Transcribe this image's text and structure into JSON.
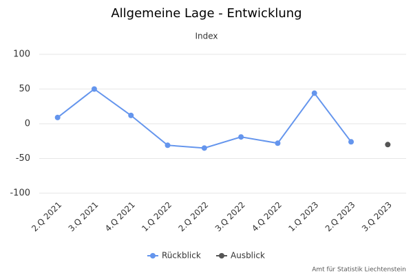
{
  "chart_data": {
    "type": "line",
    "title": "Allgemeine Lage - Entwicklung",
    "subtitle": "Index",
    "categories": [
      "2.Q 2021",
      "3.Q 2021",
      "4.Q 2021",
      "1.Q 2022",
      "2.Q 2022",
      "3.Q 2022",
      "4.Q 2022",
      "1.Q 2023",
      "2.Q 2023",
      "3.Q 2023"
    ],
    "series": [
      {
        "name": "Rückblick",
        "color": "#6495ed",
        "values": [
          9,
          50,
          12,
          -31,
          -35,
          -19,
          -28,
          44,
          -26,
          null
        ]
      },
      {
        "name": "Ausblick",
        "color": "#555555",
        "values": [
          null,
          null,
          null,
          null,
          null,
          null,
          null,
          null,
          null,
          -30
        ]
      }
    ],
    "ylim": [
      -100,
      100
    ],
    "yticks": [
      -100,
      -50,
      0,
      50,
      100
    ],
    "grid": true,
    "legend": "bottom",
    "credits": "Amt für Statistik Liechtenstein"
  }
}
